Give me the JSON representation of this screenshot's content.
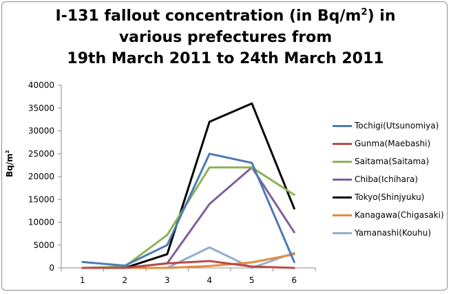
{
  "title": {
    "line1_pre": "I-131 fallout concentration (in Bq/m",
    "line1_sup": "2",
    "line1_post": ") in",
    "line2": "various prefectures from",
    "line3": "19th March 2011 to 24th March 2011"
  },
  "chart_data": {
    "type": "line",
    "title": "I-131 fallout concentration (in Bq/m2) in various prefectures from 19th March 2011 to 24th March 2011",
    "xlabel": "",
    "ylabel": "Bq/m2",
    "ylabel_base": "Bq/m",
    "ylabel_sup": "2",
    "categories": [
      "1",
      "2",
      "3",
      "4",
      "5",
      "6"
    ],
    "ylim": [
      0,
      40000
    ],
    "yticks": [
      0,
      5000,
      10000,
      15000,
      20000,
      25000,
      30000,
      35000,
      40000
    ],
    "grid": false,
    "legend_position": "right",
    "series": [
      {
        "name": "Tochigi(Utsunomiya)",
        "color": "#4a7ab5",
        "values": [
          1300,
          500,
          5000,
          25000,
          23000,
          1300
        ]
      },
      {
        "name": "Gunma(Maebashi)",
        "color": "#b94a45",
        "values": [
          0,
          0,
          1000,
          1500,
          300,
          0
        ]
      },
      {
        "name": "Saitama(Saitama)",
        "color": "#8db255",
        "values": [
          0,
          300,
          7200,
          22000,
          22000,
          16000
        ]
      },
      {
        "name": "Chiba(Ichihara)",
        "color": "#7d5f9a",
        "values": [
          0,
          0,
          1000,
          14000,
          22000,
          7800
        ]
      },
      {
        "name": "Tokyo(Shinjyuku)",
        "color": "#000000",
        "values": [
          0,
          0,
          3000,
          32000,
          36000,
          13000
        ]
      },
      {
        "name": "Kanagawa(Chigasaki)",
        "color": "#e38b3e",
        "values": [
          0,
          0,
          0,
          400,
          1200,
          3000
        ]
      },
      {
        "name": "Yamanashi(Kouhu)",
        "color": "#93acd0",
        "values": [
          0,
          0,
          0,
          4500,
          0,
          3300
        ]
      }
    ]
  }
}
